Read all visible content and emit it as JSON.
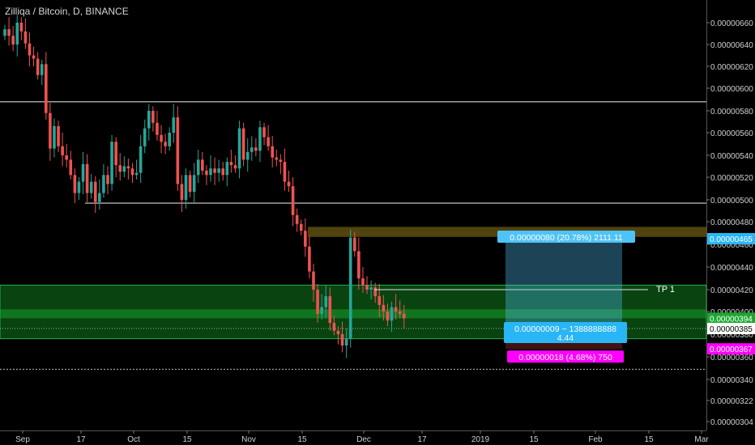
{
  "header": {
    "title": "Zilliqa / Bitcoin, D, BINANCE"
  },
  "colors": {
    "up": "#26a69a",
    "down": "#ef5350",
    "background": "#000000",
    "axis_text": "#d0d0d0",
    "level_line": "#d8d8d8",
    "green_zone": "#0f7a1e",
    "target_zone": "#6b5a12",
    "target_label": "#4fc3f7",
    "entry_label": "#29b6f6",
    "stop_label": "#ff00ff",
    "price_tag_blue": "#29b6f6",
    "price_tag_magenta": "#ff00ff"
  },
  "chart_data": {
    "type": "candlestick",
    "title": "Zilliqa / Bitcoin, D, BINANCE",
    "x_ticks": [
      "Sep",
      "17",
      "Oct",
      "15",
      "Nov",
      "15",
      "Dec",
      "17",
      "2019",
      "15",
      "Feb",
      "15",
      "Mar"
    ],
    "y_ticks": [
      "0.00000660",
      "0.00000640",
      "0.00000620",
      "0.00000600",
      "0.00000580",
      "0.00000560",
      "0.00000540",
      "0.00000520",
      "0.00000500",
      "0.00000480",
      "0.00000460",
      "0.00000440",
      "0.00000420",
      "0.00000400",
      "0.00000380",
      "0.00000360",
      "0.00000340",
      "0.00000322",
      "0.00000304"
    ],
    "ylim": [
      3e-06,
      6.67e-06
    ],
    "candles_close": [
      654,
      648,
      640,
      660,
      652,
      641,
      630,
      627,
      612,
      622,
      578,
      546,
      566,
      548,
      540,
      536,
      522,
      506,
      516,
      532,
      506,
      516,
      498,
      506,
      522,
      514,
      552,
      531,
      525,
      530,
      528,
      522,
      524,
      548,
      564,
      580,
      569,
      558,
      552,
      548,
      560,
      574,
      514,
      500,
      522,
      507,
      522,
      536,
      526,
      522,
      528,
      524,
      528,
      522,
      534,
      531,
      528,
      564,
      536,
      543,
      547,
      544,
      565,
      556,
      548,
      538,
      536,
      534,
      516,
      512,
      486,
      478,
      472,
      458,
      436,
      420,
      398,
      404,
      414,
      390,
      383,
      380,
      370,
      376,
      466,
      454,
      430,
      424,
      420,
      422,
      414,
      406,
      400,
      392,
      404,
      400,
      398,
      394
    ],
    "levels": [
      {
        "name": "resistance-1",
        "value": 5.88e-06
      },
      {
        "name": "resistance-2",
        "value": 4.97e-06
      },
      {
        "name": "support-low",
        "value": 3.49e-06
      }
    ],
    "zones": [
      {
        "name": "target-zone",
        "from": 4.68e-06,
        "to": 4.74e-06
      },
      {
        "name": "demand-zone",
        "from": 3.76e-06,
        "to": 4.24e-06
      },
      {
        "name": "entry-zone",
        "from": 3.94e-06,
        "to": 4.02e-06
      }
    ],
    "tp_line": {
      "value": 4.2e-06,
      "label": "TP 1"
    },
    "position": {
      "entry": 3.85e-06,
      "target": 4.65e-06,
      "stop": 3.67e-06,
      "target_label": "0.00000080 (20.78%) 2111.11",
      "ratio_line1": "0.00000009 ~ 1388888888",
      "ratio_line2": "4.44",
      "stop_label": "0.00000018 (4.68%) 750"
    },
    "price_tags": [
      {
        "value": 4.65e-06,
        "label": "0.00000465",
        "style": "blue"
      },
      {
        "value": 3.94e-06,
        "label": "0.00000394",
        "style": "green"
      },
      {
        "value": 3.85e-06,
        "label": "0.00000385",
        "style": "white"
      },
      {
        "value": 3.67e-06,
        "label": "0.00000367",
        "style": "magenta"
      }
    ]
  }
}
